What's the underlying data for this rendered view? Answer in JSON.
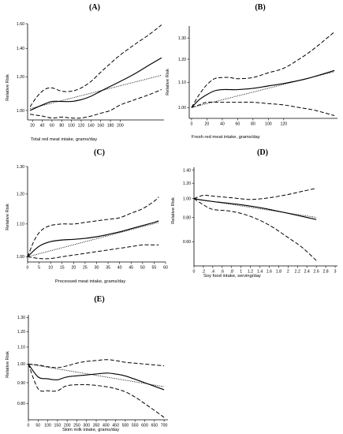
{
  "figure": {
    "panels": [
      {
        "id": "A",
        "title": "(A)",
        "xlabel": "Total red meat intake, grams/day",
        "ylabel": "Relative Risk"
      },
      {
        "id": "B",
        "title": "(B)",
        "xlabel": "Fresh red meat intake, grams/day",
        "ylabel": "Relative Risk"
      },
      {
        "id": "C",
        "title": "(C)",
        "xlabel": "Processed meat intake, grams/day",
        "ylabel": "Relative Risk"
      },
      {
        "id": "D",
        "title": "(D)",
        "xlabel": "Soy food intake, serving/day",
        "ylabel": "Relative Risk"
      },
      {
        "id": "E",
        "title": "(E)",
        "xlabel": "Skim milk intake, grams/day",
        "ylabel": "Relative Risk"
      }
    ]
  },
  "chart_data": [
    {
      "id": "A",
      "type": "line",
      "title": "(A)",
      "xlabel": "Total red meat intake, grams/day",
      "ylabel": "Relative Risk",
      "xlim": [
        10,
        290
      ],
      "ylim": [
        0.95,
        1.6
      ],
      "log_y": true,
      "xticks": [
        20,
        40,
        60,
        80,
        100,
        120,
        140,
        160,
        180,
        200
      ],
      "xtick_labels": [
        "20",
        "40",
        "60",
        "80",
        "100",
        "120",
        "140",
        "160",
        "180",
        "200"
      ],
      "yticks": [
        1.0,
        1.2,
        1.4,
        1.6
      ],
      "ytick_labels": [
        "1.00",
        "1.20",
        "1.40",
        "1.60"
      ],
      "series": [
        {
          "style": "solid",
          "x": [
            15,
            40,
            60,
            80,
            100,
            120,
            140,
            160,
            180,
            200,
            230,
            260,
            285
          ],
          "y": [
            1.0,
            1.03,
            1.05,
            1.05,
            1.05,
            1.06,
            1.08,
            1.11,
            1.14,
            1.17,
            1.22,
            1.28,
            1.33
          ]
        },
        {
          "style": "dotted",
          "x": [
            15,
            285
          ],
          "y": [
            1.01,
            1.21
          ]
        },
        {
          "style": "dashed",
          "x": [
            15,
            30,
            45,
            60,
            80,
            100,
            120,
            140,
            160,
            180,
            200,
            230,
            260,
            285
          ],
          "y": [
            1.02,
            1.08,
            1.12,
            1.13,
            1.11,
            1.11,
            1.13,
            1.17,
            1.23,
            1.29,
            1.35,
            1.43,
            1.51,
            1.59
          ]
        },
        {
          "style": "dashed",
          "x": [
            15,
            40,
            60,
            80,
            100,
            120,
            140,
            160,
            180,
            200,
            230,
            260,
            285
          ],
          "y": [
            0.98,
            0.97,
            0.96,
            0.965,
            0.96,
            0.96,
            0.97,
            0.985,
            1.0,
            1.03,
            1.06,
            1.09,
            1.12
          ]
        }
      ]
    },
    {
      "id": "B",
      "type": "line",
      "title": "(B)",
      "xlabel": "Fresh red meat intake, grams/day",
      "ylabel": "Relative Risk",
      "xlim": [
        -3,
        190
      ],
      "ylim": [
        0.96,
        1.36
      ],
      "log_y": true,
      "xticks": [
        0,
        20,
        40,
        60,
        80,
        100,
        120
      ],
      "xtick_labels": [
        "0",
        "20",
        "40",
        "60",
        "80",
        "100",
        "120"
      ],
      "yticks": [
        1.0,
        1.1,
        1.2,
        1.3
      ],
      "ytick_labels": [
        "1.00",
        "1.10",
        "1.20",
        "1.30"
      ],
      "series": [
        {
          "style": "solid",
          "x": [
            0,
            10,
            20,
            30,
            40,
            50,
            60,
            80,
            100,
            120,
            150,
            186
          ],
          "y": [
            1.0,
            1.03,
            1.05,
            1.065,
            1.07,
            1.07,
            1.07,
            1.075,
            1.085,
            1.095,
            1.115,
            1.15
          ]
        },
        {
          "style": "dotted",
          "x": [
            0,
            186
          ],
          "y": [
            1.0,
            1.145
          ]
        },
        {
          "style": "dashed",
          "x": [
            0,
            10,
            20,
            30,
            40,
            50,
            60,
            80,
            100,
            120,
            140,
            160,
            186
          ],
          "y": [
            1.0,
            1.05,
            1.09,
            1.115,
            1.12,
            1.12,
            1.115,
            1.12,
            1.14,
            1.16,
            1.2,
            1.25,
            1.33
          ]
        },
        {
          "style": "dashed",
          "x": [
            0,
            10,
            20,
            40,
            60,
            80,
            100,
            120,
            140,
            160,
            186
          ],
          "y": [
            1.0,
            1.01,
            1.02,
            1.02,
            1.02,
            1.02,
            1.015,
            1.01,
            1.0,
            0.99,
            0.97
          ]
        }
      ]
    },
    {
      "id": "C",
      "type": "line",
      "title": "(C)",
      "xlabel": "Processed meat intake, grams/day",
      "ylabel": "Relative Risk",
      "xlim": [
        0,
        60
      ],
      "ylim": [
        0.985,
        1.3
      ],
      "log_y": true,
      "xticks": [
        0,
        5,
        10,
        15,
        20,
        25,
        30,
        35,
        40,
        45,
        50,
        55,
        60
      ],
      "xtick_labels": [
        "0",
        "5",
        "10",
        "15",
        "20",
        "25",
        "30",
        "35",
        "40",
        "45",
        "50",
        "55",
        "60"
      ],
      "yticks": [
        1.0,
        1.1,
        1.2,
        1.3
      ],
      "ytick_labels": [
        "1.00",
        "1.10",
        "1.20",
        "1.30"
      ],
      "series": [
        {
          "style": "solid",
          "x": [
            0,
            3,
            6,
            10,
            15,
            20,
            25,
            30,
            35,
            40,
            45,
            50,
            55,
            57
          ],
          "y": [
            1.0,
            1.02,
            1.035,
            1.045,
            1.05,
            1.052,
            1.055,
            1.06,
            1.067,
            1.075,
            1.085,
            1.095,
            1.105,
            1.11
          ]
        },
        {
          "style": "dotted",
          "x": [
            0,
            57
          ],
          "y": [
            1.0,
            1.105
          ]
        },
        {
          "style": "dashed",
          "x": [
            0,
            3,
            6,
            10,
            15,
            20,
            25,
            30,
            35,
            40,
            45,
            50,
            55,
            57
          ],
          "y": [
            1.0,
            1.05,
            1.08,
            1.095,
            1.1,
            1.1,
            1.105,
            1.11,
            1.115,
            1.12,
            1.135,
            1.15,
            1.175,
            1.19
          ]
        },
        {
          "style": "dashed",
          "x": [
            0,
            5,
            10,
            15,
            20,
            25,
            30,
            35,
            40,
            45,
            50,
            55,
            57
          ],
          "y": [
            1.0,
            0.995,
            0.995,
            1.0,
            1.005,
            1.01,
            1.015,
            1.02,
            1.025,
            1.03,
            1.035,
            1.035,
            1.035
          ]
        }
      ]
    },
    {
      "id": "D",
      "type": "line",
      "title": "(D)",
      "xlabel": "Soy food intake, serving/day",
      "ylabel": "Relative Risk",
      "xlim": [
        0,
        3.05
      ],
      "ylim": [
        0.45,
        1.45
      ],
      "log_y": true,
      "xticks": [
        0,
        0.2,
        0.4,
        0.6,
        0.8,
        1.0,
        1.2,
        1.4,
        1.6,
        1.8,
        2.0,
        2.2,
        2.4,
        2.6,
        2.8,
        3.0
      ],
      "xtick_labels": [
        "0",
        ".2",
        ".4",
        ".6",
        ".8",
        "1",
        "1.2",
        "1.4",
        "1.6",
        "1.8",
        "2",
        "2.2",
        "2.4",
        "2.6",
        "2.8",
        "3"
      ],
      "yticks": [
        0.6,
        0.8,
        1.0,
        1.2,
        1.4
      ],
      "ytick_labels": [
        "0.60",
        "0.80",
        "1.00",
        "1.20",
        "1.40"
      ],
      "series": [
        {
          "style": "solid",
          "x": [
            0,
            0.2,
            0.5,
            1.0,
            1.5,
            2.0,
            2.6
          ],
          "y": [
            1.0,
            0.98,
            0.96,
            0.93,
            0.89,
            0.84,
            0.78
          ]
        },
        {
          "style": "dotted",
          "x": [
            0,
            2.6
          ],
          "y": [
            1.0,
            0.8
          ]
        },
        {
          "style": "dashed",
          "x": [
            0,
            0.2,
            0.4,
            0.8,
            1.2,
            1.6,
            2.0,
            2.3,
            2.6
          ],
          "y": [
            1.0,
            1.04,
            1.03,
            1.01,
            0.99,
            1.01,
            1.05,
            1.09,
            1.13
          ]
        },
        {
          "style": "dashed",
          "x": [
            0,
            0.2,
            0.4,
            0.8,
            1.2,
            1.6,
            2.0,
            2.3,
            2.6
          ],
          "y": [
            1.0,
            0.93,
            0.88,
            0.86,
            0.81,
            0.73,
            0.63,
            0.56,
            0.48
          ]
        }
      ]
    },
    {
      "id": "E",
      "type": "line",
      "title": "(E)",
      "xlabel": "Skim milk intake, grams/day",
      "ylabel": "Relative Risk",
      "xlim": [
        0,
        720
      ],
      "ylim": [
        0.73,
        1.32
      ],
      "log_y": true,
      "xticks": [
        0,
        50,
        100,
        150,
        200,
        250,
        300,
        350,
        400,
        450,
        500,
        550,
        600,
        650,
        700
      ],
      "xtick_labels": [
        "0",
        "50",
        "100",
        "150",
        "200",
        "250",
        "300",
        "350",
        "400",
        "450",
        "500",
        "550",
        "600",
        "650",
        "700"
      ],
      "yticks": [
        0.8,
        0.9,
        1.0,
        1.1,
        1.2,
        1.3
      ],
      "ytick_labels": [
        "0.80",
        "0.90",
        "1.00",
        "1.10",
        "1.20",
        "1.30"
      ],
      "series": [
        {
          "style": "solid",
          "x": [
            0,
            50,
            100,
            150,
            200,
            300,
            400,
            450,
            500,
            600,
            700
          ],
          "y": [
            1.0,
            0.93,
            0.92,
            0.915,
            0.93,
            0.94,
            0.95,
            0.945,
            0.935,
            0.9,
            0.865
          ]
        },
        {
          "style": "dotted",
          "x": [
            0,
            700
          ],
          "y": [
            1.0,
            0.88
          ]
        },
        {
          "style": "dashed",
          "x": [
            0,
            50,
            100,
            150,
            200,
            250,
            300,
            350,
            400,
            450,
            500,
            550,
            600,
            650,
            700
          ],
          "y": [
            1.0,
            0.995,
            0.985,
            0.98,
            0.99,
            1.005,
            1.015,
            1.02,
            1.025,
            1.02,
            1.01,
            1.005,
            1.0,
            0.995,
            0.99
          ]
        },
        {
          "style": "dashed",
          "x": [
            0,
            50,
            100,
            150,
            200,
            300,
            400,
            450,
            500,
            550,
            600,
            650,
            700
          ],
          "y": [
            1.0,
            0.87,
            0.86,
            0.86,
            0.885,
            0.89,
            0.88,
            0.87,
            0.855,
            0.83,
            0.8,
            0.77,
            0.74
          ]
        }
      ]
    }
  ]
}
